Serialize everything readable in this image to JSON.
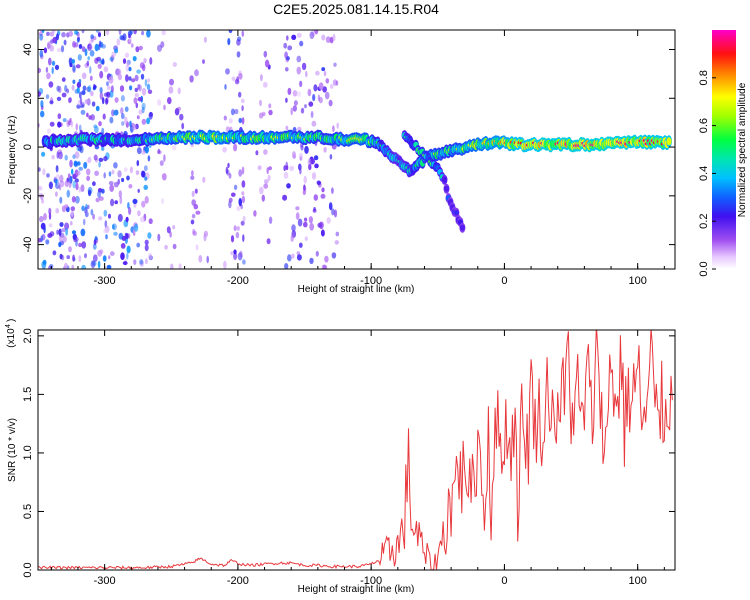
{
  "title": "C2E5.2025.081.14.15.R04",
  "chart_data": [
    {
      "type": "heatmap",
      "xlabel": "Height of straight line (km)",
      "ylabel": "Frequency (Hz)",
      "xlim": [
        -350,
        128
      ],
      "ylim": [
        -50,
        48
      ],
      "xticks": [
        -300,
        -200,
        -100,
        0,
        100
      ],
      "yticks": [
        -40,
        -20,
        0,
        20,
        40
      ],
      "colorbar": {
        "label": "Normalized spectral amplitude",
        "range": [
          0.0,
          1.0
        ],
        "ticks": [
          "0.0",
          "0.2",
          "0.4",
          "0.6",
          "0.8"
        ],
        "tick_values": [
          0.0,
          0.2,
          0.4,
          0.6,
          0.8
        ],
        "colors": [
          "#ffffff",
          "#b06cf0",
          "#6a00f0",
          "#2040ff",
          "#00c8ff",
          "#00e6a0",
          "#00ff40",
          "#a0ff00",
          "#ffff00",
          "#ffa000",
          "#ff2000",
          "#ff0040",
          "#ff00c0"
        ]
      },
      "ridge": [
        {
          "x": -345,
          "y": 2,
          "a": 0.5
        },
        {
          "x": -320,
          "y": 3,
          "a": 0.45
        },
        {
          "x": -300,
          "y": 3,
          "a": 0.5
        },
        {
          "x": -280,
          "y": 3,
          "a": 0.45
        },
        {
          "x": -265,
          "y": 3,
          "a": 0.55
        },
        {
          "x": -250,
          "y": 4,
          "a": 0.6
        },
        {
          "x": -230,
          "y": 4,
          "a": 0.65
        },
        {
          "x": -215,
          "y": 4,
          "a": 0.7
        },
        {
          "x": -200,
          "y": 4,
          "a": 0.6
        },
        {
          "x": -180,
          "y": 4,
          "a": 0.65
        },
        {
          "x": -160,
          "y": 4,
          "a": 0.6
        },
        {
          "x": -140,
          "y": 4,
          "a": 0.55
        },
        {
          "x": -120,
          "y": 3,
          "a": 0.6
        },
        {
          "x": -105,
          "y": 3,
          "a": 0.65
        },
        {
          "x": -95,
          "y": 2,
          "a": 0.5
        },
        {
          "x": -88,
          "y": -2,
          "a": 0.45
        },
        {
          "x": -80,
          "y": -6,
          "a": 0.4
        },
        {
          "x": -70,
          "y": -10,
          "a": 0.45
        },
        {
          "x": -60,
          "y": -5,
          "a": 0.55
        },
        {
          "x": -52,
          "y": -3,
          "a": 0.6
        },
        {
          "x": -45,
          "y": -2,
          "a": 0.55
        },
        {
          "x": -35,
          "y": -1,
          "a": 0.6
        },
        {
          "x": -20,
          "y": 1,
          "a": 0.7
        },
        {
          "x": -5,
          "y": 2,
          "a": 0.75
        },
        {
          "x": 10,
          "y": 1,
          "a": 0.85
        },
        {
          "x": 30,
          "y": 1,
          "a": 0.9
        },
        {
          "x": 50,
          "y": 1,
          "a": 0.9
        },
        {
          "x": 70,
          "y": 1,
          "a": 0.92
        },
        {
          "x": 90,
          "y": 2,
          "a": 0.9
        },
        {
          "x": 110,
          "y": 2,
          "a": 0.88
        },
        {
          "x": 125,
          "y": 2,
          "a": 0.85
        }
      ],
      "secondary_branch": [
        {
          "x": -75,
          "y": 5,
          "a": 0.45
        },
        {
          "x": -68,
          "y": 1,
          "a": 0.5
        },
        {
          "x": -60,
          "y": -3,
          "a": 0.55
        },
        {
          "x": -50,
          "y": -9,
          "a": 0.5
        },
        {
          "x": -45,
          "y": -13,
          "a": 0.4
        },
        {
          "x": -42,
          "y": -21,
          "a": 0.25
        },
        {
          "x": -30,
          "y": -34,
          "a": 0.15
        }
      ],
      "noise_bands": [
        {
          "from": -350,
          "to": -265,
          "density": 1.0
        },
        {
          "from": -260,
          "to": -240,
          "density": 0.25
        },
        {
          "from": -235,
          "to": -222,
          "density": 0.3
        },
        {
          "from": -210,
          "to": -195,
          "density": 0.7
        },
        {
          "from": -188,
          "to": -175,
          "density": 0.3
        },
        {
          "from": -165,
          "to": -125,
          "density": 0.55
        }
      ]
    },
    {
      "type": "line",
      "xlabel": "Height of straight line (km)",
      "ylabel": "SNR (10 * v/v)",
      "multiplier_label": "(x10",
      "multiplier_exponent": "4",
      "xlim": [
        -350,
        128
      ],
      "ylim": [
        0.0,
        2.05
      ],
      "xticks": [
        -300,
        -200,
        -100,
        0,
        100
      ],
      "yticks": [
        0.0,
        0.5,
        1.0,
        1.5,
        2.0
      ],
      "ytick_labels": [
        "0.0",
        "0.5",
        "1.0",
        "1.5",
        "2.0"
      ],
      "color": "#e8383c",
      "series": [
        {
          "x": [
            -350,
            -330,
            -310,
            -290,
            -270,
            -250,
            -235,
            -228,
            -220,
            -210,
            -205,
            -198,
            -190,
            -180,
            -170,
            -160,
            -150,
            -140,
            -130,
            -120,
            -110,
            -100,
            -95,
            -90,
            -85,
            -80,
            -76,
            -72,
            -70,
            -68,
            -65,
            -62,
            -58,
            -55,
            -52,
            -50,
            -47,
            -45,
            -42,
            -40,
            -37,
            -35,
            -32,
            -30,
            -28,
            -25,
            -22,
            -20,
            -18,
            -15,
            -12,
            -10,
            -8,
            -5,
            -2,
            0,
            3,
            5,
            8,
            10,
            13,
            15,
            18,
            20,
            23,
            25,
            28,
            30,
            33,
            35,
            38,
            40,
            43,
            45,
            48,
            50,
            53,
            55,
            58,
            60,
            63,
            65,
            68,
            70,
            73,
            75,
            78,
            80,
            83,
            85,
            88,
            90,
            93,
            95,
            98,
            100,
            103,
            105,
            108,
            110,
            113,
            115,
            118,
            120,
            123,
            126
          ],
          "y": [
            0.02,
            0.02,
            0.02,
            0.02,
            0.02,
            0.03,
            0.06,
            0.1,
            0.05,
            0.04,
            0.08,
            0.05,
            0.04,
            0.05,
            0.06,
            0.06,
            0.04,
            0.04,
            0.03,
            0.03,
            0.03,
            0.05,
            0.08,
            0.12,
            0.18,
            0.2,
            0.35,
            0.8,
            0.55,
            0.35,
            0.3,
            0.18,
            0.1,
            0.05,
            0.05,
            0.08,
            0.3,
            0.25,
            0.6,
            0.5,
            0.75,
            0.95,
            0.7,
            1.0,
            0.85,
            0.6,
            0.9,
            1.0,
            1.15,
            0.3,
            1.3,
            0.35,
            1.1,
            1.2,
            1.0,
            1.25,
            1.1,
            1.05,
            1.35,
            0.5,
            1.3,
            1.2,
            1.05,
            1.6,
            1.2,
            1.35,
            1.25,
            1.1,
            1.75,
            1.3,
            1.45,
            1.2,
            1.6,
            1.35,
            1.95,
            1.4,
            1.3,
            1.55,
            1.2,
            1.45,
            1.65,
            1.3,
            1.5,
            2.05,
            1.4,
            0.8,
            1.5,
            1.95,
            1.35,
            1.45,
            1.85,
            1.2,
            1.55,
            1.4,
            1.6,
            1.7,
            1.35,
            1.2,
            1.5,
            1.85,
            1.25,
            1.45,
            1.4,
            1.3,
            1.55,
            1.45
          ]
        }
      ]
    }
  ]
}
